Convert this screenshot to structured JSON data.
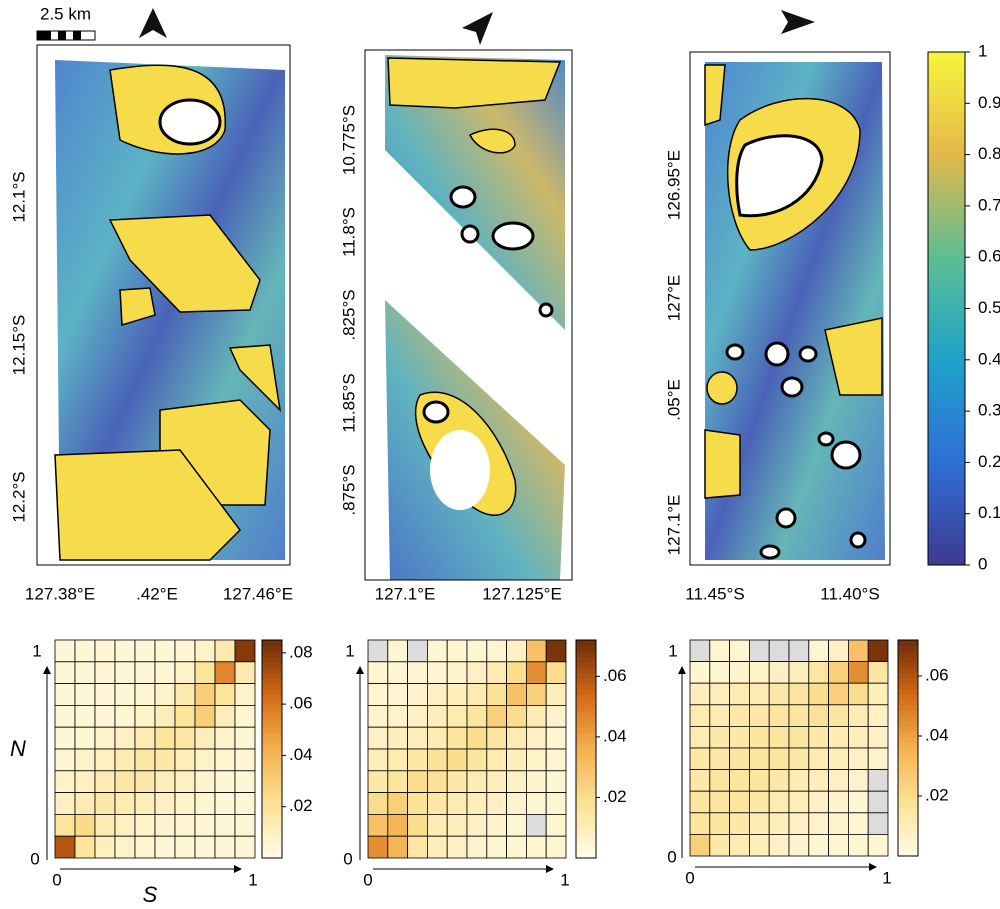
{
  "scale_bar": "2.5 km",
  "maps": [
    {
      "y_ticks": [
        {
          "pos": "12.1°S"
        },
        {
          "pos": "12.15°S"
        },
        {
          "pos": "12.2°S"
        }
      ],
      "x_ticks": [
        "127.38°E",
        ".42°E",
        "127.46°E"
      ]
    },
    {
      "y_ticks": [
        {
          "pos": "10.775°S"
        },
        {
          "pos": "11.8°S"
        },
        {
          "pos": ".825°S"
        },
        {
          "pos": "11.85°S"
        },
        {
          "pos": ".875°S"
        }
      ],
      "x_ticks": [
        "127.1°E",
        "127.125°E"
      ]
    },
    {
      "y_ticks": [
        {
          "pos": "126.95°E"
        },
        {
          "pos": "127°E"
        },
        {
          "pos": ".05°E"
        },
        {
          "pos": "127.1°E"
        }
      ],
      "x_ticks": [
        "11.45°S",
        "11.40°S"
      ]
    }
  ],
  "colorbar": {
    "ylim": [
      0,
      1
    ],
    "yticks": [
      0,
      0.1,
      0.2,
      0.3,
      0.4,
      0.5,
      0.6,
      0.7,
      0.8,
      0.9,
      1
    ]
  },
  "axis_labels": {
    "zero": "0",
    "one": "1",
    "n": "N",
    "s": "S"
  },
  "heatmaps": [
    {
      "zlim": [
        0,
        0.085
      ],
      "cbar_ticks": [
        {
          "value": 0.02,
          "label": ".02"
        },
        {
          "value": 0.04,
          "label": ".04"
        },
        {
          "value": 0.06,
          "label": ".06"
        },
        {
          "value": 0.08,
          "label": ".08"
        }
      ],
      "values": [
        [
          0.005,
          0.005,
          0.005,
          0.005,
          0.005,
          0.005,
          0.005,
          0.008,
          0.015,
          0.08
        ],
        [
          0.005,
          0.005,
          0.005,
          0.005,
          0.005,
          0.005,
          0.008,
          0.02,
          0.055,
          0.015
        ],
        [
          0.005,
          0.005,
          0.005,
          0.005,
          0.006,
          0.008,
          0.015,
          0.03,
          0.02,
          0.008
        ],
        [
          0.005,
          0.005,
          0.005,
          0.006,
          0.008,
          0.012,
          0.02,
          0.03,
          0.012,
          0.006
        ],
        [
          0.005,
          0.006,
          0.008,
          0.01,
          0.014,
          0.02,
          0.018,
          0.012,
          0.008,
          0.005
        ],
        [
          0.006,
          0.008,
          0.01,
          0.014,
          0.018,
          0.016,
          0.012,
          0.008,
          0.006,
          0.005
        ],
        [
          0.008,
          0.01,
          0.014,
          0.018,
          0.016,
          0.012,
          0.01,
          0.007,
          0.005,
          0.005
        ],
        [
          0.01,
          0.014,
          0.016,
          0.014,
          0.012,
          0.01,
          0.008,
          0.006,
          0.005,
          0.005
        ],
        [
          0.02,
          0.025,
          0.014,
          0.01,
          0.008,
          0.007,
          0.006,
          0.005,
          0.005,
          0.005
        ],
        [
          0.07,
          0.02,
          0.01,
          0.008,
          0.006,
          0.005,
          0.005,
          0.005,
          0.005,
          0.005
        ]
      ]
    },
    {
      "zlim": [
        0,
        0.072
      ],
      "cbar_ticks": [
        {
          "value": 0.02,
          "label": ".02"
        },
        {
          "value": 0.04,
          "label": ".04"
        },
        {
          "value": 0.06,
          "label": ".06"
        }
      ],
      "values": [
        [
          null,
          0.005,
          null,
          0.005,
          0.005,
          0.005,
          0.005,
          0.008,
          0.03,
          0.07
        ],
        [
          0.005,
          0.005,
          0.005,
          0.005,
          0.006,
          0.008,
          0.012,
          0.02,
          0.045,
          0.02
        ],
        [
          0.005,
          0.005,
          0.006,
          0.008,
          0.01,
          0.012,
          0.018,
          0.03,
          0.025,
          0.01
        ],
        [
          0.006,
          0.007,
          0.008,
          0.01,
          0.012,
          0.016,
          0.025,
          0.02,
          0.012,
          0.006
        ],
        [
          0.008,
          0.009,
          0.01,
          0.012,
          0.016,
          0.02,
          0.016,
          0.012,
          0.008,
          0.005
        ],
        [
          0.01,
          0.012,
          0.014,
          0.018,
          0.02,
          0.016,
          0.012,
          0.01,
          0.007,
          0.005
        ],
        [
          0.014,
          0.016,
          0.02,
          0.018,
          0.014,
          0.012,
          0.01,
          0.008,
          0.006,
          0.005
        ],
        [
          0.02,
          0.025,
          0.018,
          0.014,
          0.012,
          0.01,
          0.008,
          0.006,
          0.005,
          0.005
        ],
        [
          0.03,
          0.035,
          0.02,
          0.012,
          0.01,
          0.008,
          0.006,
          0.005,
          null,
          0.005
        ],
        [
          0.045,
          0.035,
          0.015,
          0.01,
          0.008,
          0.006,
          0.005,
          0.005,
          0.005,
          0.005
        ]
      ]
    },
    {
      "zlim": [
        0,
        0.072
      ],
      "cbar_ticks": [
        {
          "value": 0.02,
          "label": ".02"
        },
        {
          "value": 0.04,
          "label": ".04"
        },
        {
          "value": 0.06,
          "label": ".06"
        }
      ],
      "values": [
        [
          null,
          0.005,
          0.005,
          null,
          null,
          null,
          0.005,
          0.008,
          0.03,
          0.07
        ],
        [
          0.005,
          0.005,
          0.006,
          0.007,
          0.008,
          0.01,
          0.015,
          0.025,
          0.045,
          0.015
        ],
        [
          0.01,
          0.01,
          0.012,
          0.012,
          0.014,
          0.016,
          0.02,
          0.025,
          0.02,
          0.01
        ],
        [
          0.012,
          0.012,
          0.014,
          0.014,
          0.016,
          0.016,
          0.018,
          0.016,
          0.012,
          0.008
        ],
        [
          0.012,
          0.014,
          0.014,
          0.016,
          0.016,
          0.016,
          0.014,
          0.012,
          0.01,
          0.008
        ],
        [
          0.014,
          0.014,
          0.016,
          0.016,
          0.016,
          0.014,
          0.012,
          0.01,
          0.008,
          0.006
        ],
        [
          0.014,
          0.016,
          0.016,
          0.016,
          0.014,
          0.012,
          0.01,
          0.008,
          0.006,
          null
        ],
        [
          0.016,
          0.016,
          0.016,
          0.014,
          0.012,
          0.01,
          0.008,
          0.006,
          0.005,
          null
        ],
        [
          0.016,
          0.016,
          0.014,
          0.012,
          0.01,
          0.008,
          0.007,
          0.006,
          0.005,
          null
        ],
        [
          0.025,
          0.014,
          0.012,
          0.01,
          0.008,
          0.006,
          0.005,
          0.005,
          0.005,
          0.005
        ]
      ]
    }
  ]
}
